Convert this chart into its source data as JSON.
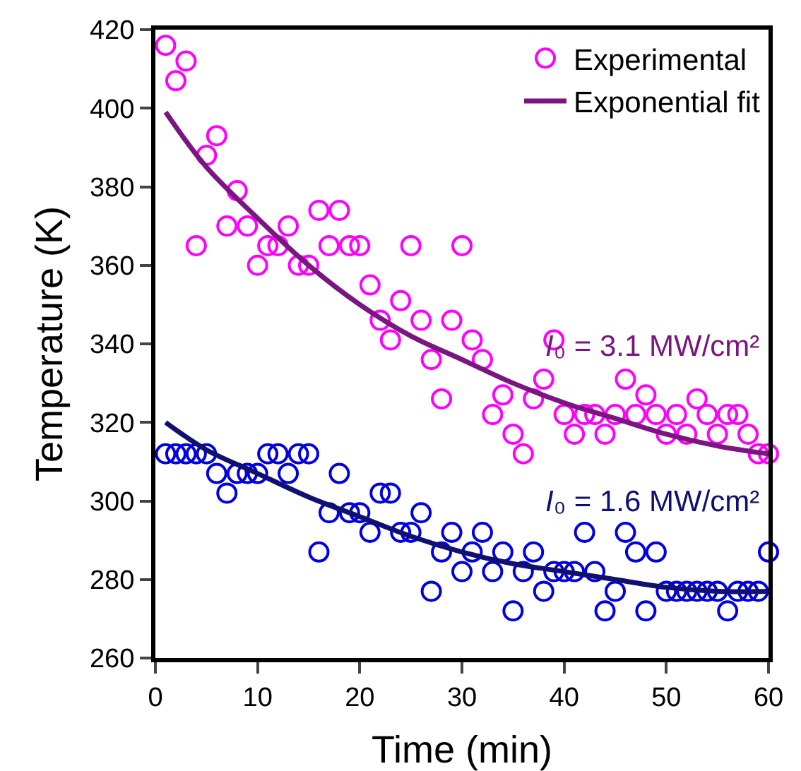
{
  "chart_data": {
    "type": "scatter",
    "xlabel": "Time (min)",
    "ylabel": "Temperature (K)",
    "xlim": [
      0,
      60
    ],
    "xticks": [
      0,
      10,
      20,
      30,
      40,
      50,
      60
    ],
    "ylim": [
      260,
      420
    ],
    "yticks": [
      260,
      280,
      300,
      320,
      340,
      360,
      380,
      400,
      420
    ],
    "grid": false,
    "legend": "top right",
    "x": [
      1,
      2,
      3,
      4,
      5,
      6,
      7,
      8,
      9,
      10,
      11,
      12,
      13,
      14,
      15,
      16,
      17,
      18,
      19,
      20,
      21,
      22,
      23,
      24,
      25,
      26,
      27,
      28,
      29,
      30,
      31,
      32,
      33,
      34,
      35,
      36,
      37,
      38,
      39,
      40,
      41,
      42,
      43,
      44,
      45,
      46,
      47,
      48,
      49,
      50,
      51,
      52,
      53,
      54,
      55,
      56,
      57,
      58,
      59,
      60
    ],
    "series": [
      {
        "name": "Experimental",
        "marker": "circle",
        "color": "#ff00ff",
        "values": [
          416,
          407,
          412,
          365,
          388,
          393,
          370,
          379,
          370,
          360,
          365,
          365,
          370,
          360,
          360,
          374,
          365,
          374,
          365,
          365,
          355,
          346,
          341,
          351,
          365,
          346,
          336,
          326,
          346,
          365,
          341,
          336,
          322,
          327,
          317,
          312,
          326,
          331,
          341,
          322,
          317,
          322,
          322,
          317,
          322,
          331,
          322,
          327,
          322,
          317,
          322,
          317,
          326,
          322,
          317,
          322,
          322,
          317,
          312,
          312
        ]
      },
      {
        "name": "Exponential fit",
        "type": "line",
        "line_style": "solid",
        "color": "#7b1580",
        "x": [
          1,
          5,
          10,
          15,
          20,
          25,
          30,
          35,
          40,
          45,
          50,
          55,
          60
        ],
        "values": [
          399,
          385,
          372,
          360,
          350,
          342,
          336,
          330,
          325,
          321,
          317,
          314,
          312
        ]
      },
      {
        "marker": "circle",
        "color": "#0000e0",
        "values": [
          312,
          312,
          312,
          312,
          312,
          307,
          302,
          307,
          307,
          307,
          312,
          312,
          307,
          312,
          312,
          287,
          297,
          307,
          297,
          297,
          292,
          302,
          302,
          292,
          292,
          297,
          277,
          287,
          292,
          282,
          287,
          292,
          282,
          287,
          272,
          282,
          287,
          277,
          282,
          282,
          282,
          292,
          282,
          272,
          277,
          292,
          287,
          272,
          287,
          277,
          277,
          277,
          277,
          277,
          277,
          272,
          277,
          277,
          277,
          287
        ]
      },
      {
        "type": "line",
        "line_style": "solid",
        "color": "#101070",
        "x": [
          1,
          5,
          10,
          15,
          20,
          25,
          30,
          35,
          40,
          45,
          50,
          55,
          60
        ],
        "values": [
          320,
          313,
          307,
          301,
          296,
          291,
          287,
          284,
          282,
          280,
          278,
          277,
          277
        ]
      }
    ],
    "annotations": [
      "I₀ = 3.1 MW/cm²",
      "I₀ = 1.6 MW/cm²"
    ]
  }
}
